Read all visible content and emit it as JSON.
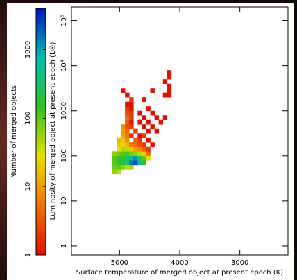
{
  "chart_data": {
    "type": "heatmap2d",
    "x_label": "Surface temperature of merged object at present epoch (K)",
    "y_label": "Luminosity of merged object at present epoch (L☉)",
    "xlim": [
      5800,
      2200
    ],
    "xticks": [
      5000,
      4000,
      3000
    ],
    "ylim": [
      0.63,
      200000
    ],
    "yticks": [
      1,
      10,
      100,
      1000,
      {
        "value": 10000,
        "label": "10⁴"
      },
      {
        "value": 100000,
        "label": "10⁵"
      }
    ],
    "y_log": true,
    "x_bins": [
      5120,
      5050,
      4980,
      4910,
      4840,
      4770,
      4700,
      4630,
      4560,
      4490,
      4420,
      4350,
      4280,
      4210,
      4140,
      4070
    ],
    "y_bins": [
      39.8,
      50.1,
      63.1,
      79.4,
      100,
      125.9,
      158.5,
      199.5,
      251.2,
      316.2,
      398.1,
      501.2,
      631,
      794.3,
      1000,
      1258.9,
      1584.9,
      1995.3,
      2511.9,
      3162.3,
      3981.1,
      5011.9,
      6309.6,
      7943.3
    ],
    "counts": [
      [
        60,
        40,
        null,
        null,
        null,
        null,
        null,
        null,
        null,
        null,
        null,
        null,
        null,
        null,
        null
      ],
      [
        80,
        100,
        60,
        40,
        50,
        null,
        null,
        null,
        null,
        null,
        null,
        null,
        null,
        null,
        null
      ],
      [
        100,
        200,
        200,
        300,
        1500,
        2500,
        800,
        150,
        null,
        null,
        null,
        null,
        null,
        null,
        null
      ],
      [
        100,
        150,
        200,
        400,
        600,
        1200,
        400,
        100,
        30,
        null,
        null,
        null,
        null,
        null,
        null
      ],
      [
        60,
        80,
        100,
        120,
        80,
        60,
        40,
        20,
        5,
        null,
        null,
        null,
        null,
        null,
        null
      ],
      [
        null,
        30,
        50,
        40,
        20,
        10,
        8,
        4,
        2,
        null,
        null,
        null,
        null,
        null,
        null
      ],
      [
        null,
        20,
        30,
        15,
        6,
        5,
        3,
        2,
        null,
        1,
        null,
        null,
        null,
        null,
        null
      ],
      [
        null,
        15,
        20,
        8,
        null,
        4,
        2,
        null,
        1,
        null,
        null,
        null,
        null,
        null,
        null
      ],
      [
        null,
        null,
        12,
        6,
        2,
        null,
        1,
        2,
        null,
        null,
        null,
        null,
        null,
        null,
        null
      ],
      [
        null,
        null,
        10,
        5,
        null,
        2,
        null,
        null,
        1,
        null,
        1,
        null,
        null,
        null,
        null
      ],
      [
        null,
        null,
        8,
        3,
        2,
        null,
        null,
        1,
        null,
        1,
        null,
        null,
        null,
        null,
        null
      ],
      [
        null,
        null,
        null,
        4,
        1,
        null,
        1,
        null,
        1,
        null,
        null,
        1,
        null,
        null,
        null
      ],
      [
        null,
        null,
        null,
        5,
        2,
        null,
        null,
        1,
        null,
        null,
        1,
        null,
        1,
        null,
        null
      ],
      [
        null,
        null,
        null,
        3,
        2,
        null,
        1,
        null,
        null,
        1,
        null,
        null,
        null,
        null,
        null
      ],
      [
        null,
        null,
        null,
        2,
        1,
        null,
        null,
        null,
        1,
        null,
        null,
        null,
        null,
        null,
        null
      ],
      [
        null,
        null,
        null,
        1,
        1,
        null,
        null,
        null,
        null,
        null,
        null,
        null,
        null,
        null,
        null
      ],
      [
        null,
        null,
        null,
        null,
        2,
        null,
        null,
        1,
        null,
        null,
        null,
        null,
        null,
        null,
        null
      ],
      [
        null,
        null,
        null,
        1,
        null,
        null,
        null,
        null,
        null,
        null,
        null,
        null,
        1,
        1,
        null
      ],
      [
        null,
        null,
        1,
        null,
        null,
        null,
        null,
        null,
        null,
        1,
        null,
        null,
        null,
        1,
        null
      ],
      [
        null,
        null,
        null,
        null,
        null,
        null,
        null,
        null,
        null,
        null,
        null,
        null,
        null,
        1,
        null
      ],
      [
        null,
        null,
        null,
        null,
        null,
        null,
        null,
        null,
        null,
        null,
        null,
        null,
        1,
        null,
        null
      ],
      [
        null,
        null,
        null,
        null,
        null,
        null,
        null,
        null,
        null,
        null,
        null,
        null,
        null,
        1,
        null
      ],
      [
        null,
        null,
        null,
        null,
        null,
        null,
        null,
        null,
        null,
        null,
        null,
        null,
        null,
        1,
        null
      ]
    ],
    "colormap": [
      "#e01000",
      "#f07000",
      "#e8e000",
      "#30c020",
      "#00c0b0",
      "#0010c0"
    ],
    "colorbar_label": "Number of merged objects",
    "colorbar_lim": [
      1,
      4000
    ],
    "colorbar_ticks": [
      1,
      10,
      100,
      1000
    ]
  }
}
